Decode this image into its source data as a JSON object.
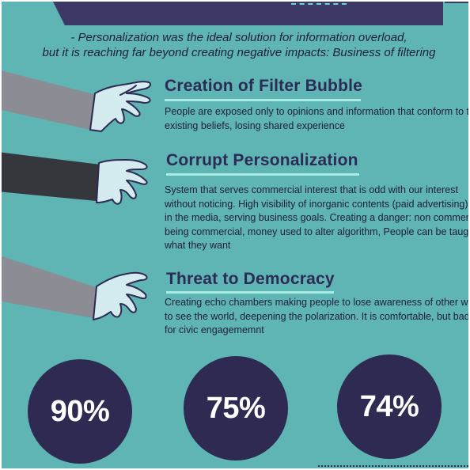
{
  "intro": {
    "line1": "- Personalization was the ideal solution for information overload,",
    "line2": "but it is reaching far beyond creating negative impacts: Business of filtering"
  },
  "sections": [
    {
      "title": "Creation of Filter Bubble",
      "body": [
        "People are exposed only to opinions and information that conform to their",
        "existing beliefs, losing shared experience"
      ],
      "sleeve_color": "#8c8c94"
    },
    {
      "title": "Corrupt Personalization",
      "body": [
        "System that serves commercial interest that is odd with our interest",
        "without noticing. High visibility of inorganic contents (paid advertising)",
        "in the media, serving business goals. Creating a danger: non commercial",
        "being commercial, money used to alter algorithm, People can be taught",
        "what they want"
      ],
      "sleeve_color": "#35373d"
    },
    {
      "title": "Threat to Democracy",
      "body": [
        "Creating echo chambers making people to lose awareness of other ways",
        "to see the world, deepening the polarization. It is comfortable, but bad",
        "for civic engagememnt"
      ],
      "sleeve_color": "#8c8c94"
    }
  ],
  "stats": [
    "90%",
    "75%",
    "74%"
  ],
  "colors": {
    "background": "#5eb5b3",
    "navy": "#2e2a52",
    "title": "#2d2a55",
    "underline": "#a8ece6",
    "hand": "#d4ecef"
  }
}
